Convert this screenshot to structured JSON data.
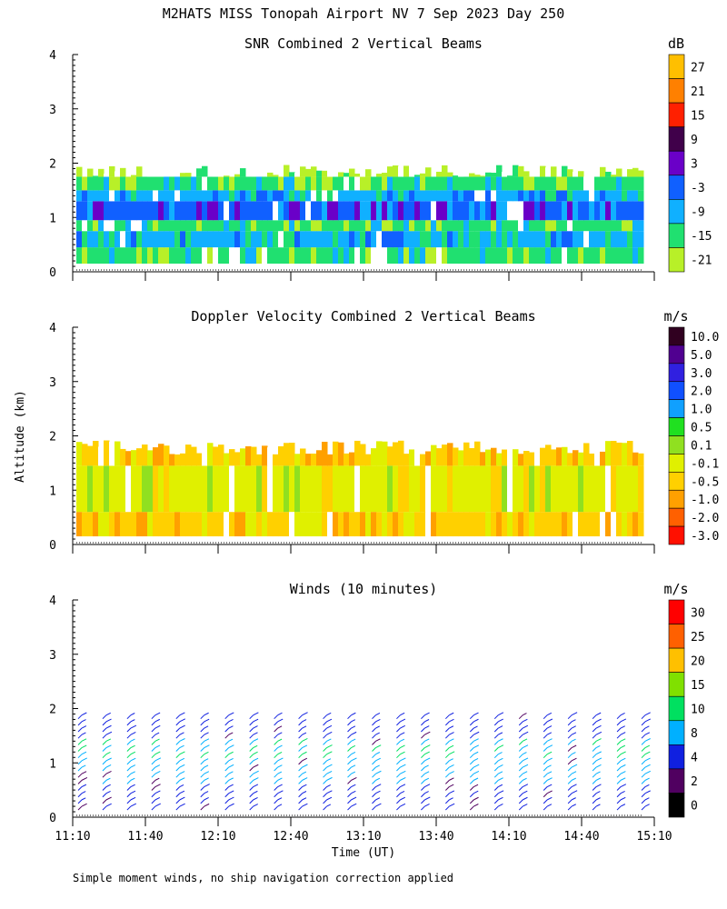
{
  "figure": {
    "title": "M2HATS MISS Tonopah Airport NV   7 Sep 2023 Day 250",
    "ylabel": "Altitude (km)",
    "xlabel": "Time (UT)",
    "footnote": "Simple moment winds, no ship navigation correction applied",
    "x_ticks": [
      "11:10",
      "11:40",
      "12:10",
      "12:40",
      "13:10",
      "13:40",
      "14:10",
      "14:40",
      "15:10"
    ],
    "y_ticks": [
      "0",
      "1",
      "2",
      "3",
      "4"
    ]
  },
  "chart_data": [
    {
      "type": "heatmap",
      "title": "SNR Combined 2 Vertical Beams",
      "xlabel": "",
      "ylabel": "Altitude (km)",
      "ylim": [
        0,
        4
      ],
      "colorbar": {
        "unit": "dB",
        "labels": [
          "27",
          "21",
          "15",
          "9",
          "3",
          "-3",
          "-9",
          "-15",
          "-21"
        ],
        "colors": [
          "#ffbf00",
          "#ff8000",
          "#ff2000",
          "#40004a",
          "#6a00c8",
          "#1060ff",
          "#10b0ff",
          "#20e070",
          "#b8f028"
        ]
      },
      "layers": [
        {
          "from_km": 0.15,
          "to_km": 0.45,
          "value": "-15"
        },
        {
          "from_km": 0.45,
          "to_km": 0.75,
          "value": "-9"
        },
        {
          "from_km": 0.75,
          "to_km": 0.95,
          "value": "-15"
        },
        {
          "from_km": 0.95,
          "to_km": 1.3,
          "value": "-3"
        },
        {
          "from_km": 1.3,
          "to_km": 1.5,
          "value": "-9"
        },
        {
          "from_km": 1.5,
          "to_km": 1.75,
          "value": "-15"
        },
        {
          "from_km": 1.75,
          "to_km": 1.9,
          "value": "-21"
        }
      ]
    },
    {
      "type": "heatmap",
      "title": "Doppler Velocity Combined 2 Vertical Beams",
      "xlabel": "",
      "ylabel": "Altitude (km)",
      "ylim": [
        0,
        4
      ],
      "colorbar": {
        "unit": "m/s",
        "labels": [
          "10.0",
          "5.0",
          "3.0",
          "2.0",
          "1.0",
          "0.5",
          "0.1",
          "-0.1",
          "-0.5",
          "-1.0",
          "-2.0",
          "-3.0"
        ],
        "colors": [
          "#300020",
          "#500090",
          "#3020e0",
          "#1050ff",
          "#10a0ff",
          "#20e020",
          "#90e020",
          "#e0f000",
          "#ffd000",
          "#ffa000",
          "#ff6000",
          "#ff1000"
        ]
      },
      "layers": [
        {
          "from_km": 0.15,
          "to_km": 0.6,
          "value": "-0.5"
        },
        {
          "from_km": 0.6,
          "to_km": 1.45,
          "value": "-0.1"
        },
        {
          "from_km": 1.45,
          "to_km": 1.85,
          "value": "-0.5"
        }
      ]
    },
    {
      "type": "vector",
      "title": "Winds (10 minutes)",
      "xlabel": "Time (UT)",
      "ylabel": "Altitude (km)",
      "ylim": [
        0,
        4
      ],
      "x": [
        "11:10",
        "11:20",
        "11:30",
        "11:40",
        "11:50",
        "12:00",
        "12:10",
        "12:20",
        "12:30",
        "12:40",
        "12:50",
        "13:00",
        "13:10",
        "13:20",
        "13:30",
        "13:40",
        "13:50",
        "14:00",
        "14:10",
        "14:20",
        "14:30",
        "14:40",
        "14:50",
        "15:00"
      ],
      "colorbar": {
        "unit": "m/s",
        "labels": [
          "30",
          "25",
          "20",
          "15",
          "10",
          "8",
          "4",
          "2",
          "0"
        ],
        "colors": [
          "#ff0000",
          "#ff6000",
          "#ffc000",
          "#80e000",
          "#00e060",
          "#00b0ff",
          "#1020e0",
          "#500060",
          "#000000"
        ]
      }
    }
  ]
}
